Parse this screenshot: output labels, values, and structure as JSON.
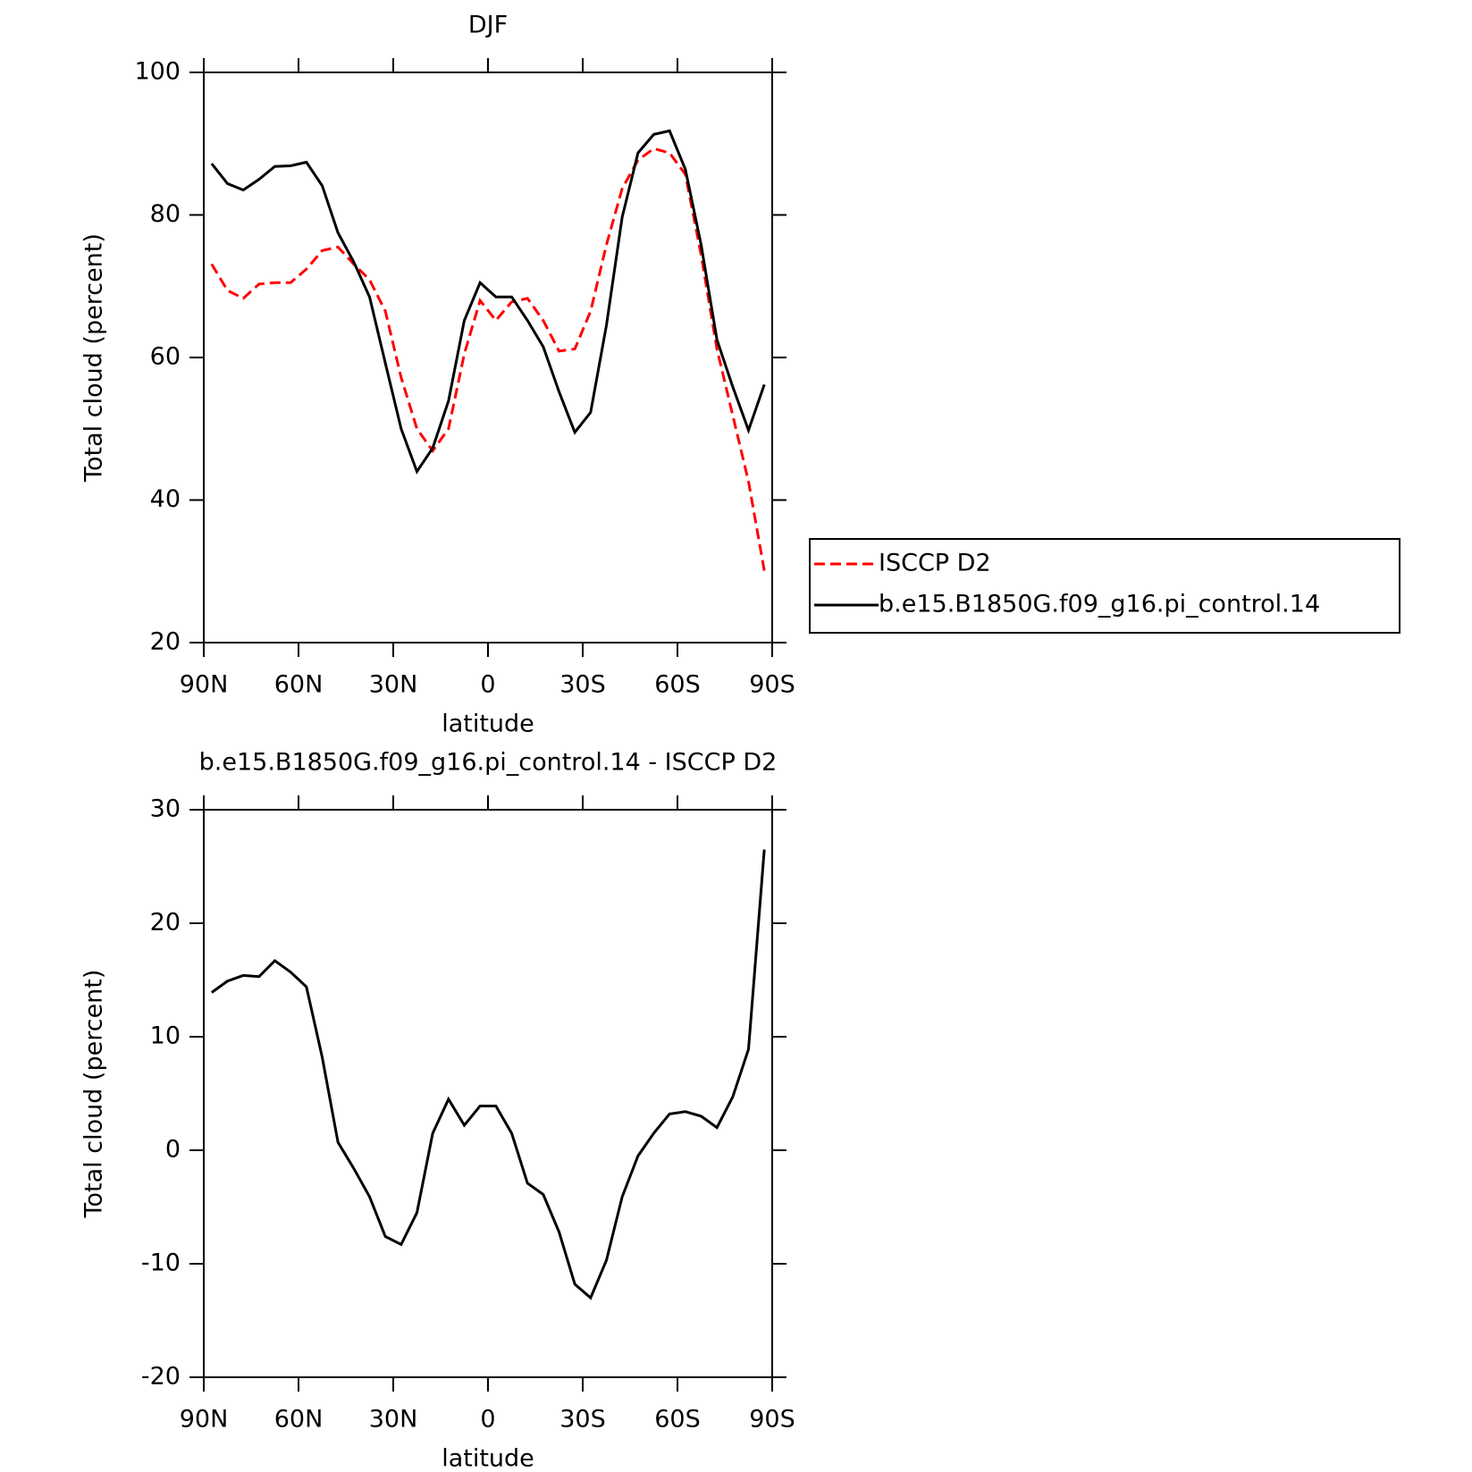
{
  "chart_data": [
    {
      "type": "line",
      "title": "DJF",
      "xlabel": "latitude",
      "ylabel": "Total cloud (percent)",
      "x": [
        87.5,
        82.5,
        77.5,
        72.5,
        67.5,
        62.5,
        57.5,
        52.5,
        47.5,
        42.5,
        37.5,
        32.5,
        27.5,
        22.5,
        17.5,
        12.5,
        7.5,
        2.5,
        -2.5,
        -7.5,
        -12.5,
        -17.5,
        -22.5,
        -27.5,
        -32.5,
        -37.5,
        -42.5,
        -47.5,
        -52.5,
        -57.5,
        -62.5,
        -67.5,
        -72.5,
        -77.5,
        -82.5,
        -87.5
      ],
      "series": [
        {
          "name": "ISCCP D2",
          "color": "#ff0000",
          "linestyle": "dashed",
          "values": [
            73.1,
            69.4,
            68.3,
            70.3,
            70.5,
            70.5,
            72.4,
            75.0,
            75.5,
            73.1,
            70.9,
            66.5,
            57.2,
            50.0,
            46.9,
            50.0,
            60.5,
            68.0,
            65.2,
            67.8,
            68.3,
            65.2,
            60.9,
            61.2,
            66.5,
            75.8,
            83.7,
            87.7,
            89.3,
            88.7,
            85.7,
            74.4,
            61.2,
            51.9,
            42.6,
            30.1
          ]
        },
        {
          "name": "b.e15.B1850G.f09_g16.pi_control.14",
          "color": "#000000",
          "linestyle": "solid",
          "values": [
            87.2,
            84.4,
            83.5,
            85.0,
            86.8,
            86.9,
            87.4,
            84.1,
            77.5,
            73.4,
            68.5,
            59.2,
            50.0,
            44.0,
            47.3,
            53.9,
            65.2,
            70.5,
            68.5,
            68.5,
            65.2,
            61.5,
            55.2,
            49.5,
            52.3,
            64.5,
            79.7,
            88.7,
            91.3,
            91.8,
            86.4,
            75.8,
            62.5,
            55.9,
            49.8,
            56.2
          ]
        }
      ],
      "xlim": [
        90,
        -90
      ],
      "xticks": [
        {
          "value": 90,
          "label": "90N"
        },
        {
          "value": 60,
          "label": "60N"
        },
        {
          "value": 30,
          "label": "30N"
        },
        0,
        {
          "value": -30,
          "label": "30S"
        },
        {
          "value": -60,
          "label": "60S"
        },
        {
          "value": -90,
          "label": "90S"
        }
      ],
      "ylim": [
        20,
        100
      ],
      "yticks": [
        20,
        40,
        60,
        80,
        100
      ],
      "legend": "right"
    },
    {
      "type": "line",
      "title": "b.e15.B1850G.f09_g16.pi_control.14 - ISCCP D2",
      "xlabel": "latitude",
      "ylabel": "Total cloud (percent)",
      "x": [
        87.5,
        82.5,
        77.5,
        72.5,
        67.5,
        62.5,
        57.5,
        52.5,
        47.5,
        42.5,
        37.5,
        32.5,
        27.5,
        22.5,
        17.5,
        12.5,
        7.5,
        2.5,
        -2.5,
        -7.5,
        -12.5,
        -17.5,
        -22.5,
        -27.5,
        -32.5,
        -37.5,
        -42.5,
        -47.5,
        -52.5,
        -57.5,
        -62.5,
        -67.5,
        -72.5,
        -77.5,
        -82.5,
        -87.5
      ],
      "series": [
        {
          "color": "#000000",
          "linestyle": "solid",
          "values": [
            13.9,
            14.9,
            15.4,
            15.3,
            16.7,
            15.7,
            14.4,
            8.2,
            0.7,
            -1.6,
            -4.1,
            -7.6,
            -8.3,
            -5.5,
            1.5,
            4.5,
            2.2,
            3.9,
            3.9,
            1.5,
            -2.9,
            -3.9,
            -7.2,
            -11.8,
            -13.0,
            -9.7,
            -4.1,
            -0.5,
            1.5,
            3.2,
            3.4,
            3.0,
            2.0,
            4.7,
            8.9,
            26.5
          ]
        }
      ],
      "xlim": [
        90,
        -90
      ],
      "xticks": [
        {
          "value": 90,
          "label": "90N"
        },
        {
          "value": 60,
          "label": "60N"
        },
        {
          "value": 30,
          "label": "30N"
        },
        0,
        {
          "value": -30,
          "label": "30S"
        },
        {
          "value": -60,
          "label": "60S"
        },
        {
          "value": -90,
          "label": "90S"
        }
      ],
      "ylim": [
        -20,
        30
      ],
      "yticks": [
        -20,
        -10,
        0,
        10,
        20,
        30
      ]
    }
  ]
}
